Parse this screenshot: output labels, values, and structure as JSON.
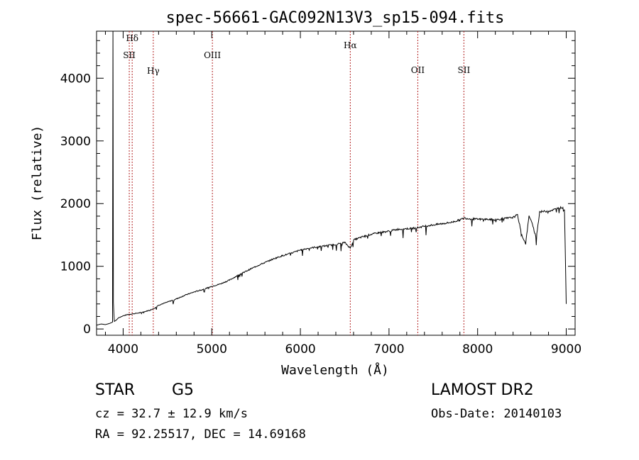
{
  "chart_data": {
    "type": "line",
    "title": "spec-56661-GAC092N13V3_sp15-094.fits",
    "xlabel": "Wavelength (Å)",
    "ylabel": "Flux (relative)",
    "xlim": [
      3700,
      9100
    ],
    "ylim": [
      -100,
      4750
    ],
    "x_ticks": [
      4000,
      5000,
      6000,
      7000,
      8000,
      9000
    ],
    "y_ticks": [
      0,
      1000,
      2000,
      3000,
      4000
    ],
    "grid": false,
    "series": [
      {
        "x": [
          3700,
          3750,
          3800,
          3850,
          3880,
          3885,
          3890,
          3900,
          3920,
          3950,
          4000,
          4050,
          4100,
          4150,
          4200,
          4250,
          4300,
          4350,
          4400,
          4500,
          4600,
          4700,
          4800,
          4900,
          5000,
          5100,
          5200,
          5300,
          5400,
          5500,
          5600,
          5700,
          5800,
          5900,
          6000,
          6100,
          6200,
          6300,
          6400,
          6500,
          6563,
          6600,
          6700,
          6800,
          6900,
          7000,
          7100,
          7200,
          7300,
          7400,
          7500,
          7600,
          7700,
          7800,
          7850,
          7900,
          8000,
          8100,
          8200,
          8300,
          8400,
          8450,
          8498,
          8542,
          8580,
          8600,
          8662,
          8700,
          8800,
          8900,
          8950,
          8980,
          9000
        ],
        "y": [
          60,
          80,
          70,
          90,
          110,
          4750,
          430,
          120,
          140,
          180,
          210,
          230,
          240,
          250,
          260,
          280,
          300,
          330,
          380,
          430,
          480,
          540,
          590,
          630,
          680,
          720,
          780,
          860,
          930,
          1000,
          1060,
          1120,
          1170,
          1210,
          1260,
          1290,
          1310,
          1330,
          1350,
          1380,
          1290,
          1420,
          1470,
          1510,
          1540,
          1560,
          1590,
          1600,
          1610,
          1640,
          1660,
          1680,
          1700,
          1740,
          1770,
          1760,
          1750,
          1750,
          1740,
          1760,
          1780,
          1820,
          1500,
          1360,
          1800,
          1750,
          1450,
          1870,
          1880,
          1920,
          1940,
          1900,
          400
        ]
      }
    ],
    "lines": [
      {
        "label": "Hδ",
        "x": 4102
      },
      {
        "label": "SII",
        "x": 4069
      },
      {
        "label": "Hγ",
        "x": 4340
      },
      {
        "label": "OIII",
        "x": 5007
      },
      {
        "label": "Hα",
        "x": 6563
      },
      {
        "label": "OII",
        "x": 7325
      },
      {
        "label": "SII",
        "x": 7845
      }
    ]
  },
  "info": {
    "class_label": "STAR",
    "subclass": "G5",
    "survey": "LAMOST DR2",
    "cz": "cz = 32.7 ± 12.9 km/s",
    "obs_date": "Obs-Date: 20140103",
    "coords": "RA =  92.25517, DEC =  14.69168"
  },
  "colors": {
    "spectrum": "#000000",
    "line_marker": "#b22222"
  }
}
